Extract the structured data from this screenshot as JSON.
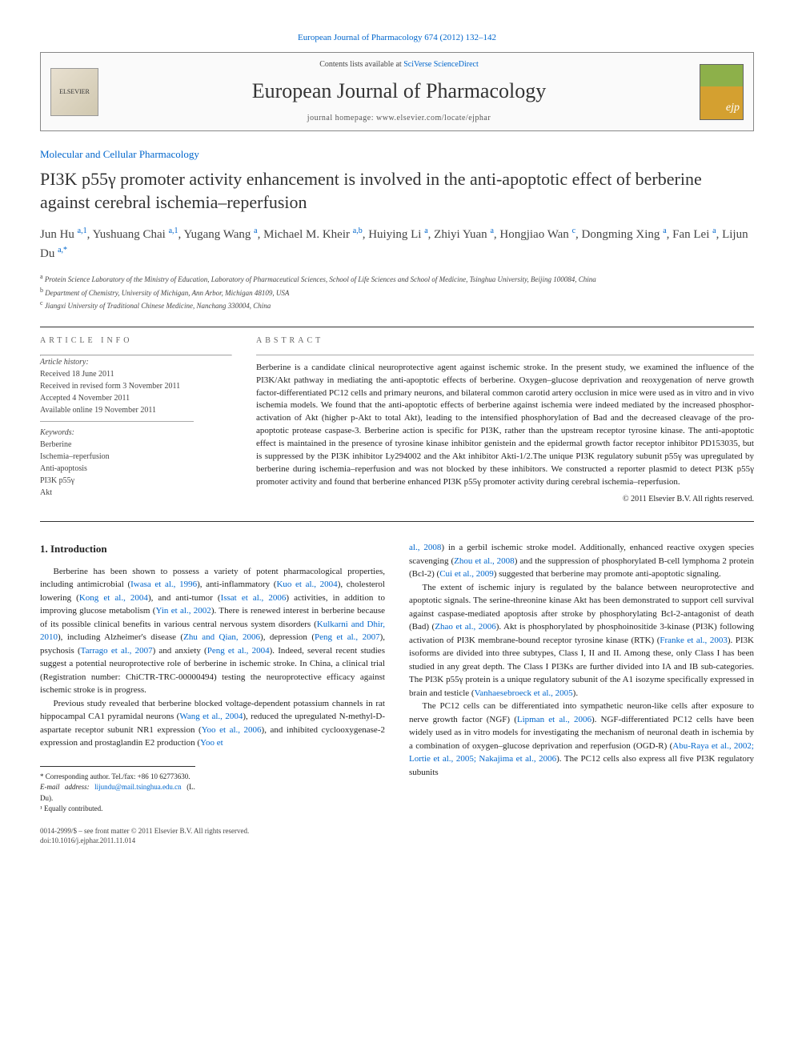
{
  "top_link": "European Journal of Pharmacology 674 (2012) 132–142",
  "header": {
    "logo_text": "ELSEVIER",
    "contents_prefix": "Contents lists available at ",
    "contents_link": "SciVerse ScienceDirect",
    "journal": "European Journal of Pharmacology",
    "homepage_prefix": "journal homepage: ",
    "homepage": "www.elsevier.com/locate/ejphar"
  },
  "section": "Molecular and Cellular Pharmacology",
  "title": "PI3K p55γ promoter activity enhancement is involved in the anti-apoptotic effect of berberine against cerebral ischemia–reperfusion",
  "authors_html": "Jun Hu <sup>a,1</sup>, Yushuang Chai <sup>a,1</sup>, Yugang Wang <sup>a</sup>, Michael M. Kheir <sup>a,b</sup>, Huiying Li <sup>a</sup>, Zhiyi Yuan <sup>a</sup>, Hongjiao Wan <sup>c</sup>, Dongming Xing <sup>a</sup>, Fan Lei <sup>a</sup>, Lijun Du <sup>a,*</sup>",
  "affiliations": {
    "a": "Protein Science Laboratory of the Ministry of Education, Laboratory of Pharmaceutical Sciences, School of Life Sciences and School of Medicine, Tsinghua University, Beijing 100084, China",
    "b": "Department of Chemistry, University of Michigan, Ann Arbor, Michigan 48109, USA",
    "c": "Jiangxi University of Traditional Chinese Medicine, Nanchang 330004, China"
  },
  "article_info": {
    "heading": "ARTICLE INFO",
    "history_label": "Article history:",
    "received": "Received 18 June 2011",
    "revised": "Received in revised form 3 November 2011",
    "accepted": "Accepted 4 November 2011",
    "online": "Available online 19 November 2011",
    "keywords_label": "Keywords:",
    "keywords": [
      "Berberine",
      "Ischemia–reperfusion",
      "Anti-apoptosis",
      "PI3K p55γ",
      "Akt"
    ]
  },
  "abstract": {
    "heading": "ABSTRACT",
    "text": "Berberine is a candidate clinical neuroprotective agent against ischemic stroke. In the present study, we examined the influence of the PI3K/Akt pathway in mediating the anti-apoptotic effects of berberine. Oxygen–glucose deprivation and reoxygenation of nerve growth factor-differentiated PC12 cells and primary neurons, and bilateral common carotid artery occlusion in mice were used as in vitro and in vivo ischemia models. We found that the anti-apoptotic effects of berberine against ischemia were indeed mediated by the increased phosphor-activation of Akt (higher p-Akt to total Akt), leading to the intensified phosphorylation of Bad and the decreased cleavage of the pro-apoptotic protease caspase-3. Berberine action is specific for PI3K, rather than the upstream receptor tyrosine kinase. The anti-apoptotic effect is maintained in the presence of tyrosine kinase inhibitor genistein and the epidermal growth factor receptor inhibitor PD153035, but is suppressed by the PI3K inhibitor Ly294002 and the Akt inhibitor Akti-1/2.The unique PI3K regulatory subunit p55γ was upregulated by berberine during ischemia–reperfusion and was not blocked by these inhibitors. We constructed a reporter plasmid to detect PI3K p55γ promoter activity and found that berberine enhanced PI3K p55γ promoter activity during cerebral ischemia–reperfusion.",
    "copyright": "© 2011 Elsevier B.V. All rights reserved."
  },
  "body": {
    "intro_heading": "1. Introduction",
    "col1_p1": "Berberine has been shown to possess a variety of potent pharmacological properties, including antimicrobial (<span class=\"cite\">Iwasa et al., 1996</span>), anti-inflammatory (<span class=\"cite\">Kuo et al., 2004</span>), cholesterol lowering (<span class=\"cite\">Kong et al., 2004</span>), and anti-tumor (<span class=\"cite\">Issat et al., 2006</span>) activities, in addition to improving glucose metabolism (<span class=\"cite\">Yin et al., 2002</span>). There is renewed interest in berberine because of its possible clinical benefits in various central nervous system disorders (<span class=\"cite\">Kulkarni and Dhir, 2010</span>), including Alzheimer's disease (<span class=\"cite\">Zhu and Qian, 2006</span>), depression (<span class=\"cite\">Peng et al., 2007</span>), psychosis (<span class=\"cite\">Tarrago et al., 2007</span>) and anxiety (<span class=\"cite\">Peng et al., 2004</span>). Indeed, several recent studies suggest a potential neuroprotective role of berberine in ischemic stroke. In China, a clinical trial (Registration number: ChiCTR-TRC-00000494) testing the neuroprotective efficacy against ischemic stroke is in progress.",
    "col1_p2": "Previous study revealed that berberine blocked voltage-dependent potassium channels in rat hippocampal CA1 pyramidal neurons (<span class=\"cite\">Wang et al., 2004</span>), reduced the upregulated N-methyl-D-aspartate receptor subunit NR1 expression (<span class=\"cite\">Yoo et al., 2006</span>), and inhibited cyclooxygenase-2 expression and prostaglandin E2 production (<span class=\"cite\">Yoo et</span>",
    "col2_p1": "<span class=\"cite\">al., 2008</span>) in a gerbil ischemic stroke model. Additionally, enhanced reactive oxygen species scavenging (<span class=\"cite\">Zhou et al., 2008</span>) and the suppression of phosphorylated B-cell lymphoma 2 protein (Bcl-2) (<span class=\"cite\">Cui et al., 2009</span>) suggested that berberine may promote anti-apoptotic signaling.",
    "col2_p2": "The extent of ischemic injury is regulated by the balance between neuroprotective and apoptotic signals. The serine-threonine kinase Akt has been demonstrated to support cell survival against caspase-mediated apoptosis after stroke by phosphorylating Bcl-2-antagonist of death (Bad) (<span class=\"cite\">Zhao et al., 2006</span>). Akt is phosphorylated by phosphoinositide 3-kinase (PI3K) following activation of PI3K membrane-bound receptor tyrosine kinase (RTK) (<span class=\"cite\">Franke et al., 2003</span>). PI3K isoforms are divided into three subtypes, Class I, II and II. Among these, only Class I has been studied in any great depth. The Class I PI3Ks are further divided into IA and IB sub-categories. The PI3K p55γ protein is a unique regulatory subunit of the A1 isozyme specifically expressed in brain and testicle (<span class=\"cite\">Vanhaesebroeck et al., 2005</span>).",
    "col2_p3": "The PC12 cells can be differentiated into sympathetic neuron-like cells after exposure to nerve growth factor (NGF) (<span class=\"cite\">Lipman et al., 2006</span>). NGF-differentiated PC12 cells have been widely used as in vitro models for investigating the mechanism of neuronal death in ischemia by a combination of oxygen–glucose deprivation and reperfusion (OGD-R) (<span class=\"cite\">Abu-Raya et al., 2002; Lortie et al., 2005; Nakajima et al., 2006</span>). The PC12 cells also express all five PI3K regulatory subunits"
  },
  "footnotes": {
    "corr_label": "* Corresponding author. Tel./fax: +86 10 62773630.",
    "email_label": "E-mail address:",
    "email": "lijundu@mail.tsinghua.edu.cn",
    "email_name": "(L. Du).",
    "equal": "¹ Equally contributed."
  },
  "bottom": {
    "line1": "0014-2999/$ – see front matter © 2011 Elsevier B.V. All rights reserved.",
    "line2": "doi:10.1016/j.ejphar.2011.11.014"
  }
}
